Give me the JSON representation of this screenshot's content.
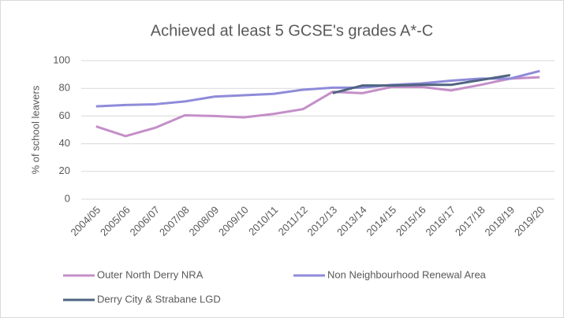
{
  "chart_data": {
    "type": "line",
    "title": "Achieved at least 5 GCSE's grades A*-C",
    "y_label": "% of school leavers",
    "categories": [
      "2004/05",
      "2005/06",
      "2006/07",
      "2007/08",
      "2008/09",
      "2009/10",
      "2010/11",
      "2011/12",
      "2012/13",
      "2013/14",
      "2014/15",
      "2015/16",
      "2016/17",
      "2017/18",
      "2018/19",
      "2019/20"
    ],
    "series": [
      {
        "name": "Outer North Derry NRA",
        "color": "#c48fc8",
        "values": [
          52.5,
          45.5,
          51.5,
          60.5,
          60,
          59,
          61.5,
          65,
          77.5,
          76.5,
          81,
          81,
          78.5,
          82.5,
          87,
          88
        ]
      },
      {
        "name": "Non Neighbourhood Renewal Area",
        "color": "#8f8bd9",
        "values": [
          67,
          68,
          68.5,
          70.5,
          74,
          75,
          76,
          79,
          80.5,
          80.5,
          82.5,
          83.5,
          85.5,
          87,
          87,
          92.5
        ]
      },
      {
        "name": "Derry City & Strabane LGD",
        "color": "#4f6480",
        "values": [
          null,
          null,
          null,
          null,
          null,
          null,
          null,
          null,
          76.5,
          82,
          82,
          82.5,
          82.5,
          86,
          89.5,
          null
        ]
      }
    ],
    "ylim": [
      0,
      100
    ],
    "yticks": [
      0,
      20,
      40,
      60,
      80,
      100
    ],
    "grid": true
  }
}
